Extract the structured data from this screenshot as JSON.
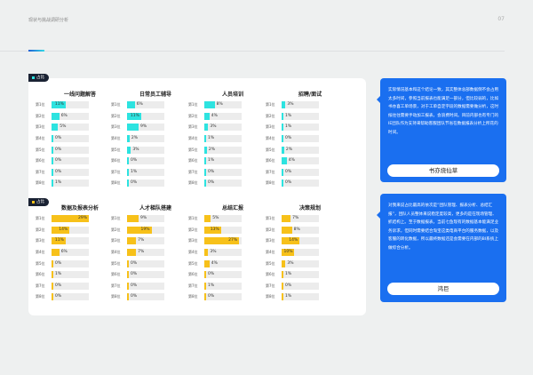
{
  "header": {
    "title": "现状与挑战调研分析",
    "page": "07"
  },
  "badge_label": "占比",
  "rank_labels": [
    "第1位",
    "第2位",
    "第3位",
    "第4位",
    "第5位",
    "第6位",
    "第7位",
    "第8位"
  ],
  "colors": {
    "cyan": "#2de3e0",
    "yellow": "#f7c11a",
    "panel": "#1a6ff0"
  },
  "top_groups": [
    {
      "title": "一线问题解答",
      "values": [
        11,
        6,
        5,
        0,
        0,
        0,
        0,
        1
      ]
    },
    {
      "title": "日常员工辅导",
      "values": [
        6,
        11,
        9,
        2,
        3,
        0,
        1,
        0
      ]
    },
    {
      "title": "人员培训",
      "values": [
        8,
        4,
        3,
        1,
        2,
        1,
        0,
        0
      ]
    },
    {
      "title": "招聘/面试",
      "values": [
        3,
        1,
        1,
        0,
        2,
        4,
        0,
        0
      ]
    }
  ],
  "bottom_groups": [
    {
      "title": "数据及报表分析",
      "values": [
        29,
        14,
        11,
        6,
        0,
        1,
        0,
        0
      ]
    },
    {
      "title": "人才梯队搭建",
      "values": [
        9,
        19,
        7,
        7,
        0,
        0,
        0,
        0
      ]
    },
    {
      "title": "总结汇报",
      "values": [
        5,
        13,
        27,
        3,
        4,
        0,
        1,
        0
      ]
    },
    {
      "title": "决策规划",
      "values": [
        7,
        8,
        14,
        10,
        3,
        1,
        0,
        1
      ]
    }
  ],
  "panels": [
    {
      "text": "实际情况基本和这个结论一致，其实整体总部数据倒不会占用太多时间，参照当前报表也能满足一部分，但比较弱的，比如书亦喜工单场景，对于工单自定字段的数据需要做分析，这时候往往需要手动加工报表，会浪费时间。目前内部也有专门的IE团队作为支持来帮助客服团队节省在数据报表分析上所花的时间。",
      "button": "书亦烧仙草"
    },
    {
      "text": "对我来说占比最高的依次是“团队管理、报表分析、总结汇报”，团队人员整体来说稳定度较高，更多的是在现场管理、抓结构上。至于数据报表，当前七鱼现有的数据基本能满足业务诉求，但同时需要结合淘宝这类电商平台的服务数据，以及客服的转化数据，所以最终数据还是会需要在内部的BI系统上做综合分析。",
      "button": "鸿巨"
    }
  ]
}
